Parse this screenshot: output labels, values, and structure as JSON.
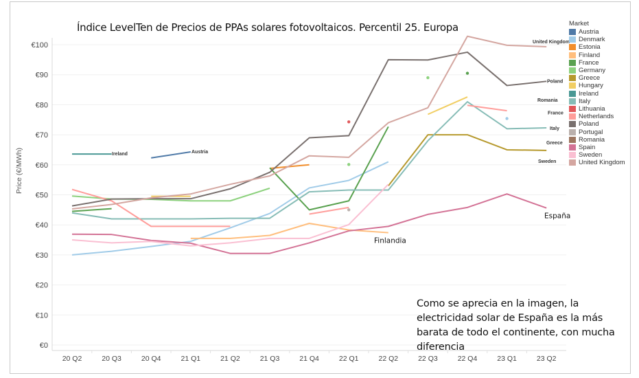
{
  "chart_data": {
    "type": "line",
    "title": "Índice LevelTen de Precios de PPAs solares fotovoltaicos. Percentil 25. Europa",
    "xlabel": "",
    "ylabel": "Price (€/MWh)",
    "ylim": [
      0,
      100
    ],
    "yticks": [
      0,
      10,
      20,
      30,
      40,
      50,
      60,
      70,
      80,
      90,
      100
    ],
    "ytick_labels": [
      "€0",
      "€10",
      "€20",
      "€30",
      "€40",
      "€50",
      "€60",
      "€70",
      "€80",
      "€90",
      "€100"
    ],
    "grid": true,
    "categories": [
      "20 Q2",
      "20 Q3",
      "20 Q4",
      "21 Q1",
      "21 Q2",
      "21 Q3",
      "21 Q4",
      "22 Q1",
      "22 Q2",
      "22 Q3",
      "22 Q4",
      "23 Q1",
      "23 Q2"
    ],
    "legend": {
      "title": "Market",
      "placement": "right"
    },
    "series": [
      {
        "name": "Austria",
        "color": "#4e79a7",
        "values": [
          null,
          null,
          62.3,
          64.3,
          null,
          null,
          null,
          null,
          null,
          null,
          null,
          null,
          null
        ],
        "label": "Austria"
      },
      {
        "name": "Denmark",
        "color": "#a0cbe8",
        "values": [
          30.0,
          31.2,
          32.8,
          34.5,
          39.0,
          43.8,
          52.3,
          54.8,
          61.0,
          null,
          null,
          75.4,
          null
        ],
        "label": null
      },
      {
        "name": "Estonia",
        "color": "#f28e2b",
        "values": [
          null,
          null,
          null,
          null,
          null,
          58.8,
          60.0,
          null,
          null,
          null,
          null,
          null,
          null
        ],
        "label": null
      },
      {
        "name": "Finland",
        "color": "#ffbe7d",
        "values": [
          null,
          null,
          null,
          35.5,
          35.5,
          36.5,
          40.5,
          38.3,
          37.4,
          null,
          null,
          null,
          null
        ],
        "label": "Finlandia"
      },
      {
        "name": "France",
        "color": "#59a14f",
        "values": [
          44.5,
          45.4,
          null,
          null,
          null,
          59.0,
          45.0,
          48.0,
          72.7,
          null,
          90.5,
          null,
          null
        ],
        "label": "France"
      },
      {
        "name": "Germany",
        "color": "#8cd17d",
        "values": [
          49.6,
          48.6,
          48.5,
          48.0,
          48.0,
          52.2,
          null,
          60.1,
          null,
          89.0,
          null,
          null,
          null
        ],
        "label": null
      },
      {
        "name": "Greece",
        "color": "#b6992d",
        "values": [
          null,
          null,
          null,
          null,
          null,
          null,
          null,
          null,
          53.0,
          70.0,
          70.0,
          65.0,
          64.8
        ],
        "label": "Greece"
      },
      {
        "name": "Hungary",
        "color": "#f1ce63",
        "values": [
          null,
          null,
          49.5,
          49.5,
          null,
          null,
          null,
          null,
          null,
          76.8,
          82.6,
          null,
          null
        ],
        "label": null
      },
      {
        "name": "Ireland",
        "color": "#499894",
        "values": [
          63.6,
          63.6,
          null,
          null,
          null,
          null,
          null,
          null,
          null,
          null,
          null,
          null,
          null
        ],
        "label": "Ireland"
      },
      {
        "name": "Italy",
        "color": "#86bcb6",
        "values": [
          44.0,
          42.0,
          42.0,
          42.0,
          42.2,
          42.2,
          51.0,
          51.6,
          51.6,
          68.0,
          81.0,
          72.0,
          72.3
        ],
        "label": "Italy"
      },
      {
        "name": "Lithuania",
        "color": "#e15759",
        "values": [
          null,
          null,
          null,
          null,
          null,
          null,
          null,
          74.3,
          null,
          null,
          null,
          null,
          null
        ],
        "label": null
      },
      {
        "name": "Netherlands",
        "color": "#ff9d9a",
        "values": [
          51.8,
          48.0,
          39.5,
          39.5,
          39.5,
          null,
          43.6,
          45.8,
          null,
          null,
          79.8,
          78.0,
          null
        ],
        "label": null
      },
      {
        "name": "Poland",
        "color": "#79706e",
        "values": [
          46.3,
          48.6,
          48.7,
          48.7,
          52.0,
          57.5,
          69.0,
          69.7,
          95.0,
          94.9,
          97.5,
          86.4,
          87.8
        ],
        "label": "Poland"
      },
      {
        "name": "Portugal",
        "color": "#bab0ac",
        "values": [
          null,
          null,
          null,
          null,
          null,
          null,
          null,
          45.0,
          null,
          null,
          null,
          null,
          null
        ],
        "label": null
      },
      {
        "name": "Romania",
        "color": "#9d7660",
        "values": [
          null,
          null,
          null,
          null,
          null,
          null,
          null,
          null,
          null,
          null,
          null,
          null,
          null
        ],
        "label": "Romania"
      },
      {
        "name": "Spain",
        "color": "#d37295",
        "values": [
          36.9,
          36.8,
          34.8,
          33.9,
          30.5,
          30.5,
          34.0,
          38.0,
          39.5,
          43.5,
          45.8,
          50.3,
          45.6
        ],
        "label": "España"
      },
      {
        "name": "Sweden",
        "color": "#fabfd2",
        "values": [
          35.0,
          34.0,
          34.5,
          33.0,
          34.0,
          35.5,
          35.5,
          40.1,
          53.5,
          null,
          null,
          null,
          null
        ],
        "label": "Sweden"
      },
      {
        "name": "United Kingdom",
        "color": "#d4a6a0",
        "values": [
          45.3,
          46.8,
          49.0,
          50.3,
          53.5,
          56.3,
          63.0,
          62.5,
          74.0,
          79.0,
          102.8,
          99.8,
          99.3
        ],
        "label": "United Kingdom"
      }
    ],
    "annotations": [
      "Como se aprecia en la imagen, la electricidad solar de España es la más barata de todo el continente, con mucha diferencia"
    ]
  },
  "title": "Índice LevelTen de Precios de PPAs solares fotovoltaicos. Percentil 25. Europa",
  "annotation": "Como se aprecia en la imagen, la electricidad solar de España es la más barata de todo el continente, con mucha diferencia"
}
